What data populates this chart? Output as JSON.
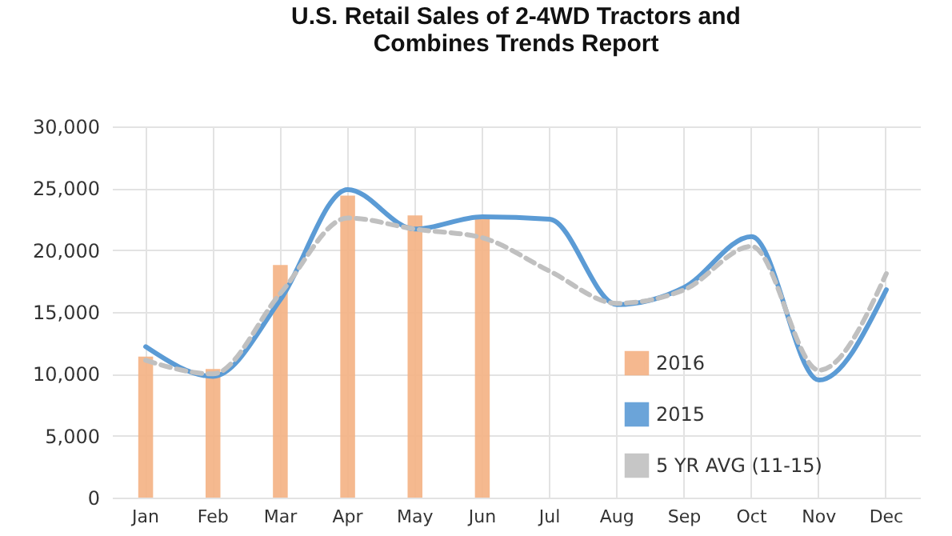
{
  "chart_data": {
    "type": "bar",
    "title": "U.S. Retail Sales of 2-4WD Tractors and Combines Trends Report",
    "categories": [
      "Jan",
      "Feb",
      "Mar",
      "Apr",
      "May",
      "Jun",
      "Jul",
      "Aug",
      "Sep",
      "Oct",
      "Nov",
      "Dec"
    ],
    "series": [
      {
        "name": "2016",
        "type": "bar",
        "color": "#f4b183",
        "values": [
          11400,
          10400,
          18800,
          24400,
          22800,
          22700,
          null,
          null,
          null,
          null,
          null,
          null
        ]
      },
      {
        "name": "2015",
        "type": "line",
        "color": "#5b9bd5",
        "line_style": "solid",
        "values": [
          12200,
          9800,
          16000,
          24900,
          21700,
          22700,
          22500,
          15600,
          17000,
          21100,
          9500,
          16800
        ]
      },
      {
        "name": "5 YR AVG (11-15)",
        "type": "line",
        "color": "#c0c0c0",
        "line_style": "dashed",
        "values": [
          11100,
          10000,
          16500,
          22600,
          21700,
          21000,
          18300,
          15700,
          16800,
          20300,
          10300,
          18100
        ]
      }
    ],
    "ylim": [
      0,
      30000
    ],
    "yticks": [
      0,
      {
        "value": 5000,
        "label": "5,000"
      },
      {
        "value": 10000,
        "label": "10,000"
      },
      {
        "value": 15000,
        "label": "15,000"
      },
      {
        "value": 20000,
        "label": "20,000"
      },
      {
        "value": 25000,
        "label": "25,000"
      },
      {
        "value": 30000,
        "label": "30,000"
      }
    ],
    "grid": true,
    "legend": "bottom right"
  }
}
